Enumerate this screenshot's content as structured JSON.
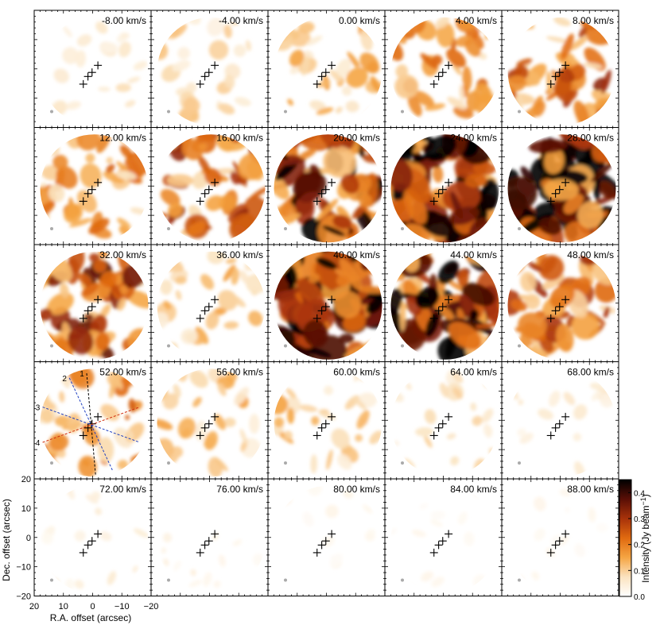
{
  "chart_data": {
    "type": "heatmap",
    "description_grid": {
      "rows": 5,
      "columns": 5
    },
    "velocity_unit": "km/s",
    "channels": [
      "-8.00",
      "-4.00",
      "0.00",
      "4.00",
      "8.00",
      "12.00",
      "16.00",
      "20.00",
      "24.00",
      "28.00",
      "32.00",
      "36.00",
      "40.00",
      "44.00",
      "48.00",
      "52.00",
      "56.00",
      "60.00",
      "64.00",
      "68.00",
      "72.00",
      "76.00",
      "80.00",
      "84.00",
      "88.00"
    ],
    "channel_brightness": [
      0.15,
      0.25,
      0.35,
      0.45,
      0.6,
      0.45,
      0.6,
      0.85,
      1.0,
      1.0,
      0.7,
      0.3,
      1.0,
      0.9,
      0.6,
      0.45,
      0.3,
      0.3,
      0.2,
      0.12,
      0.12,
      0.08,
      0.06,
      0.05,
      0.05
    ],
    "xlabel": "R.A. offset (arcsec)",
    "ylabel": "Dec. offset (arcsec)",
    "xlim": [
      20,
      -20
    ],
    "ylim": [
      -20,
      20
    ],
    "x_ticks": [
      "20",
      "10",
      "0",
      "−10",
      "−20"
    ],
    "y_ticks": [
      "20",
      "10",
      "0",
      "−10",
      "−20"
    ],
    "colorbar": {
      "label": "Intensity (Jy beam",
      "label_sup": "−1",
      "label_end": ")",
      "range": [
        0.0,
        0.45
      ],
      "ticks": [
        "0.0",
        "0.1",
        "0.2",
        "0.3",
        "0.4"
      ],
      "colors": [
        "#ffffff",
        "#fbe3c0",
        "#f5a543",
        "#e06a10",
        "#a8320a",
        "#5a0f06",
        "#000000"
      ]
    },
    "markers": {
      "symbol": "+",
      "positions_arcsec": [
        [
          -1.8,
          1.2
        ],
        [
          0.2,
          -1.2
        ],
        [
          1.6,
          -2.6
        ],
        [
          3.2,
          -5.2
        ]
      ]
    },
    "annotations": [
      "1",
      "2",
      "3",
      "4"
    ]
  }
}
